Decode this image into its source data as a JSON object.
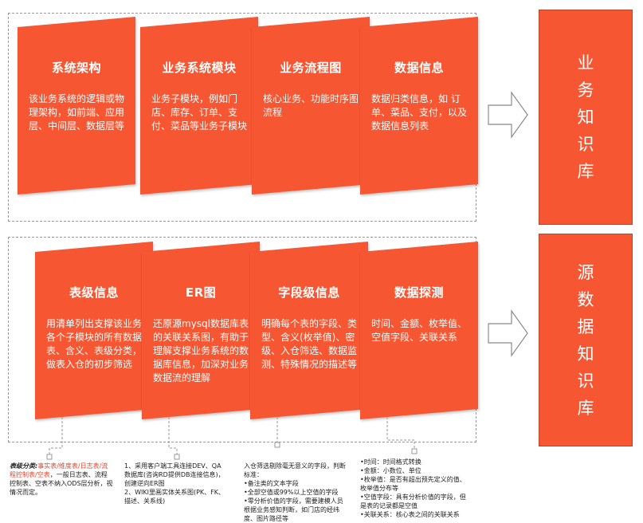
{
  "top_cards": [
    {
      "title": "系统架构",
      "desc": "该业务系统的逻辑或物理架构，如前端、应用层、中间层、数据层等"
    },
    {
      "title": "业务系统模块",
      "desc": "业务子模块，例如门店、库存、订单、支付、菜品等业务子模块"
    },
    {
      "title": "业务流程图",
      "desc": "核心业务、功能时序图流程"
    },
    {
      "title": "数据信息",
      "desc": "数据归类信息，如 订单、菜品、支付，以及数据信息列表"
    }
  ],
  "bottom_cards": [
    {
      "title": "表级信息",
      "desc": "用清单列出支撑该业务各个子模块的所有数据表、含义、表级分类，做表入仓的初步筛选"
    },
    {
      "title": "ER图",
      "desc": "还原源mysql数据库表的关联关系图，有助于理解支撑业务系统的数据库信息，加深对业务数据流的理解"
    },
    {
      "title": "字段级信息",
      "desc": "明确每个表的字段、类型、含义(枚举值)、密级、入仓筛选、数据监测、特殊情况的描述等"
    },
    {
      "title": "数据探测",
      "desc": "时间、金额、枚举值、空值字段、关联关系"
    }
  ],
  "side_boxes": {
    "top_label": "业务知识库",
    "bottom_label": "源数据知识库"
  },
  "notes": {
    "n1_prefix": "表级分类:",
    "n1_highlight": "事实表/维度表/日志表/流程控制表/空表",
    "n1_rest": "，一般日志表、流程控制表、空表不纳入ODS层分析，视情况而定。",
    "n2_lines": [
      "1、采用客户端工具连接DEV、QA数据库(咨询RD提供DB连接信息)，创建逆向ER图",
      "2、WIKI里画实体关系图(PK、FK、描述、关系线)"
    ],
    "n3_lines": [
      "入仓筛选剔除毫无意义的字段，判断标准：",
      "•备注类的文本字段",
      "•全部空值或99%以上空值的字段",
      "•零分析价值的字段，需要建模人员根据业务感知判断，如门店的经纬度、图片路径等"
    ],
    "n4_lines": [
      "•时间：时间格式转换",
      "•金额：小数位、单位",
      "•枚举值：是否有超出预先定义的值、枚举值分布等",
      "•空值字段：具有分析价值的字段，但是表的记录都是空值",
      "•关联关系：核心表之间的关联关系"
    ]
  }
}
